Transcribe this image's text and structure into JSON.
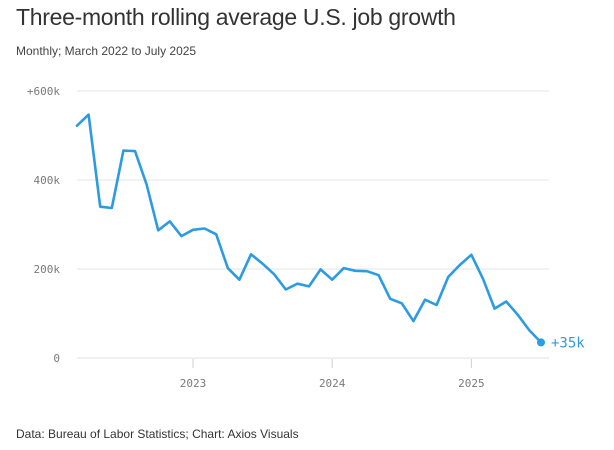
{
  "header": {
    "title": "Three-month rolling average U.S. job growth",
    "subtitle": "Monthly; March 2022 to July 2025"
  },
  "footer": {
    "source": "Data: Bureau of Labor Statistics; Chart: Axios Visuals"
  },
  "colors": {
    "line": "#2c9be3",
    "grid": "#e6e6e6"
  },
  "chart_data": {
    "type": "line",
    "title": "Three-month rolling average U.S. job growth",
    "subtitle": "Monthly; March 2022 to July 2025",
    "xlabel": "",
    "ylabel": "",
    "grid": true,
    "ylim": [
      0,
      600000
    ],
    "y_ticks": [
      {
        "value": 0,
        "label": "0"
      },
      {
        "value": 200000,
        "label": "200k"
      },
      {
        "value": 400000,
        "label": "400k"
      },
      {
        "value": 600000,
        "label": "+600k"
      }
    ],
    "x_ticks": [
      {
        "index": 10,
        "label": "2023"
      },
      {
        "index": 22,
        "label": "2024"
      },
      {
        "index": 34,
        "label": "2025"
      }
    ],
    "series": [
      {
        "name": "Three-month rolling average",
        "x": [
          "2022-03",
          "2022-04",
          "2022-05",
          "2022-06",
          "2022-07",
          "2022-08",
          "2022-09",
          "2022-10",
          "2022-11",
          "2022-12",
          "2023-01",
          "2023-02",
          "2023-03",
          "2023-04",
          "2023-05",
          "2023-06",
          "2023-07",
          "2023-08",
          "2023-09",
          "2023-10",
          "2023-11",
          "2023-12",
          "2024-01",
          "2024-02",
          "2024-03",
          "2024-04",
          "2024-05",
          "2024-06",
          "2024-07",
          "2024-08",
          "2024-09",
          "2024-10",
          "2024-11",
          "2024-12",
          "2025-01",
          "2025-02",
          "2025-03",
          "2025-04",
          "2025-05",
          "2025-06",
          "2025-07"
        ],
        "values": [
          522000,
          547000,
          340000,
          337000,
          466000,
          465000,
          390000,
          287000,
          307000,
          274000,
          288000,
          291000,
          278000,
          202000,
          176000,
          233000,
          212000,
          188000,
          154000,
          167000,
          161000,
          199000,
          176000,
          202000,
          196000,
          195000,
          186000,
          133000,
          123000,
          83000,
          131000,
          119000,
          182000,
          209000,
          232000,
          178000,
          111000,
          127000,
          97000,
          62000,
          35000
        ]
      }
    ],
    "annotations": [
      {
        "label": "+35k",
        "index": 40
      }
    ]
  }
}
